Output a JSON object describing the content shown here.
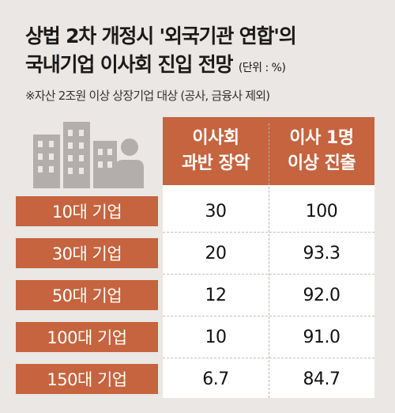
{
  "title": {
    "line1": "상법 2차 개정시 '외국기관 연합'의",
    "line2": "국내기업 이사회 진입 전망",
    "unit": "(단위 : %)"
  },
  "note": "※자산 2조원 이상 상장기업 대상 (공사, 금융사 제외)",
  "illustration": {
    "icon": "buildings-and-person-icon",
    "color": "#b3aeab"
  },
  "colors": {
    "accent": "#c5643f",
    "background": "#eae7e4",
    "cell": "#ffffff"
  },
  "chart_data": {
    "type": "table",
    "columns": [
      {
        "line1": "이사회",
        "line2": "과반 장악"
      },
      {
        "line1": "이사 1명",
        "line2": "이상 진출"
      }
    ],
    "rows": [
      {
        "label": "10대 기업",
        "values": [
          "30",
          "100"
        ]
      },
      {
        "label": "30대 기업",
        "values": [
          "20",
          "93.3"
        ]
      },
      {
        "label": "50대 기업",
        "values": [
          "12",
          "92.0"
        ]
      },
      {
        "label": "100대 기업",
        "values": [
          "10",
          "91.0"
        ]
      },
      {
        "label": "150대 기업",
        "values": [
          "6.7",
          "84.7"
        ]
      }
    ]
  }
}
